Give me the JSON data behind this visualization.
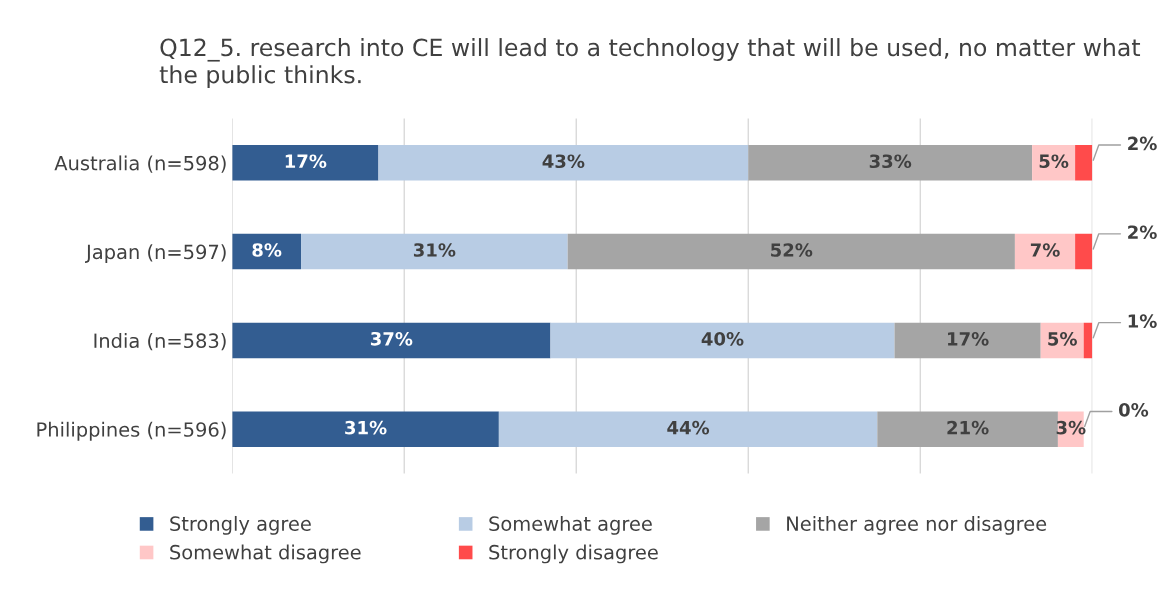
{
  "chart_data": {
    "type": "bar",
    "orientation": "horizontal",
    "stacked": true,
    "title": "Q12_5. research into CE will lead to a technology that will be used, no matter what the public thinks.",
    "categories": [
      "Australia (n=598)",
      "Japan (n=597)",
      "India (n=583)",
      "Philippines (n=596)"
    ],
    "series": [
      {
        "name": "Strongly agree",
        "color": "#335d91",
        "values": [
          17,
          8,
          37,
          31
        ],
        "value_labels": [
          "17%",
          "8%",
          "37%",
          "31%"
        ]
      },
      {
        "name": "Somewhat agree",
        "color": "#b8cce4",
        "values": [
          43,
          31,
          40,
          44
        ],
        "value_labels": [
          "43%",
          "31%",
          "40%",
          "44%"
        ]
      },
      {
        "name": "Neither agree nor disagree",
        "color": "#a5a5a5",
        "values": [
          33,
          52,
          17,
          21
        ],
        "value_labels": [
          "33%",
          "52%",
          "17%",
          "21%"
        ]
      },
      {
        "name": "Somewhat disagree",
        "color": "#ffc7c7",
        "values": [
          5,
          7,
          5,
          3
        ],
        "value_labels": [
          "5%",
          "7%",
          "5%",
          "3%"
        ]
      },
      {
        "name": "Strongly disagree",
        "color": "#ff4b4b",
        "values": [
          2,
          2,
          1,
          0
        ],
        "value_labels": [
          "2%",
          "2%",
          "1%",
          "0%"
        ]
      }
    ],
    "tick_labels": "y",
    "grid": "x",
    "legend": "bottom"
  }
}
